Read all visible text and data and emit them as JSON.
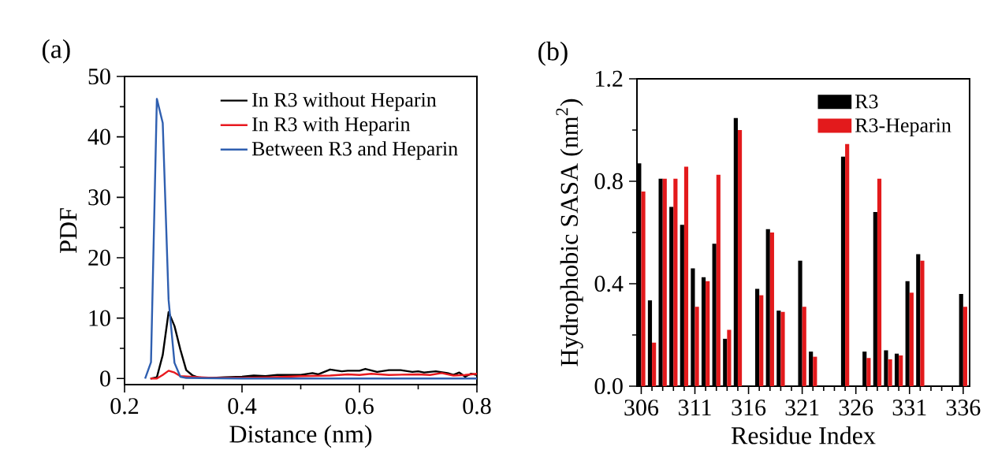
{
  "chart_data": [
    {
      "type": "line",
      "title": "(a)",
      "xlabel": "Distance (nm)",
      "ylabel": "PDF",
      "xlim": [
        0.2,
        0.8
      ],
      "xticks": [
        0.2,
        0.4,
        0.6,
        0.8
      ],
      "ylim": [
        -1,
        50
      ],
      "yticks": [
        0,
        10,
        20,
        30,
        40,
        50
      ],
      "legend": "top right",
      "grid": false,
      "marker": "none",
      "line_style": "solid",
      "series": [
        {
          "name": "In R3 without Heparin",
          "color": "#000000",
          "x": [
            0.244,
            0.255,
            0.265,
            0.275,
            0.285,
            0.295,
            0.305,
            0.316,
            0.328,
            0.35,
            0.37,
            0.4,
            0.42,
            0.44,
            0.46,
            0.49,
            0.5,
            0.52,
            0.53,
            0.55,
            0.57,
            0.58,
            0.6,
            0.61,
            0.63,
            0.65,
            0.67,
            0.69,
            0.7,
            0.71,
            0.73,
            0.75,
            0.76,
            0.77,
            0.78,
            0.79,
            0.8
          ],
          "values": [
            0,
            0.2,
            3.9,
            11,
            8.7,
            4.8,
            1.4,
            0.5,
            0.1,
            0.1,
            0.2,
            0.3,
            0.5,
            0.4,
            0.6,
            0.6,
            0.6,
            0.9,
            0.7,
            1.5,
            1.2,
            1.3,
            1.3,
            1.6,
            1.1,
            1.4,
            1.4,
            1.1,
            1.2,
            1.0,
            1.2,
            0.9,
            0.6,
            1.0,
            0.3,
            0.8,
            0.6
          ]
        },
        {
          "name": "In R3 with Heparin",
          "color": "#e8191f",
          "x": [
            0.244,
            0.255,
            0.265,
            0.275,
            0.285,
            0.295,
            0.312,
            0.35,
            0.4,
            0.45,
            0.5,
            0.55,
            0.58,
            0.6,
            0.62,
            0.65,
            0.7,
            0.72,
            0.74,
            0.76,
            0.78,
            0.8
          ],
          "values": [
            0,
            0,
            0.6,
            1.3,
            1.0,
            0.4,
            0.3,
            0.1,
            0.1,
            0.2,
            0.4,
            0.5,
            0.7,
            0.6,
            0.8,
            0.6,
            0.7,
            0.6,
            0.9,
            0.5,
            0.6,
            0.8
          ]
        },
        {
          "name": "Between R3 and Heparin",
          "color": "#2f5fb0",
          "x": [
            0.235,
            0.245,
            0.255,
            0.265,
            0.275,
            0.285,
            0.295,
            0.305,
            0.4,
            0.6,
            0.8
          ],
          "values": [
            0,
            2.7,
            46.3,
            42.3,
            13,
            2.6,
            0.3,
            0.1,
            0,
            0,
            0
          ]
        }
      ]
    },
    {
      "type": "bar",
      "title": "(b)",
      "xlabel": "Residue Index",
      "ylabel": "Hydrophobic SASA (nm$^{2}$)",
      "xlim": [
        305.6,
        336.6
      ],
      "xticks": [
        306,
        311,
        316,
        321,
        326,
        331,
        336
      ],
      "ylim": [
        0,
        1.2
      ],
      "yticks": [
        {
          "value": 0,
          "label": "0.0"
        },
        0.4,
        0.8,
        1.2
      ],
      "legend": "top right",
      "grid": false,
      "x": [
        306,
        307,
        308,
        309,
        310,
        311,
        312,
        313,
        314,
        315,
        317,
        318,
        319,
        321,
        322,
        325,
        327,
        328,
        329,
        330,
        331,
        332,
        336
      ],
      "series": [
        {
          "name": "R3",
          "color": "#000000",
          "values": [
            0.87,
            0.335,
            0.81,
            0.7,
            0.63,
            0.46,
            0.425,
            0.556,
            0.185,
            1.047,
            0.38,
            0.613,
            0.295,
            0.49,
            0.135,
            0.896,
            0.135,
            0.68,
            0.14,
            0.127,
            0.41,
            0.515,
            0.36
          ]
        },
        {
          "name": "R3-Heparin",
          "color": "#e31a1c",
          "values": [
            0.76,
            0.17,
            0.81,
            0.81,
            0.857,
            0.31,
            0.41,
            0.825,
            0.22,
            1.0,
            0.355,
            0.6,
            0.29,
            0.31,
            0.115,
            0.945,
            0.11,
            0.81,
            0.105,
            0.12,
            0.365,
            0.49,
            0.31
          ]
        }
      ]
    }
  ]
}
